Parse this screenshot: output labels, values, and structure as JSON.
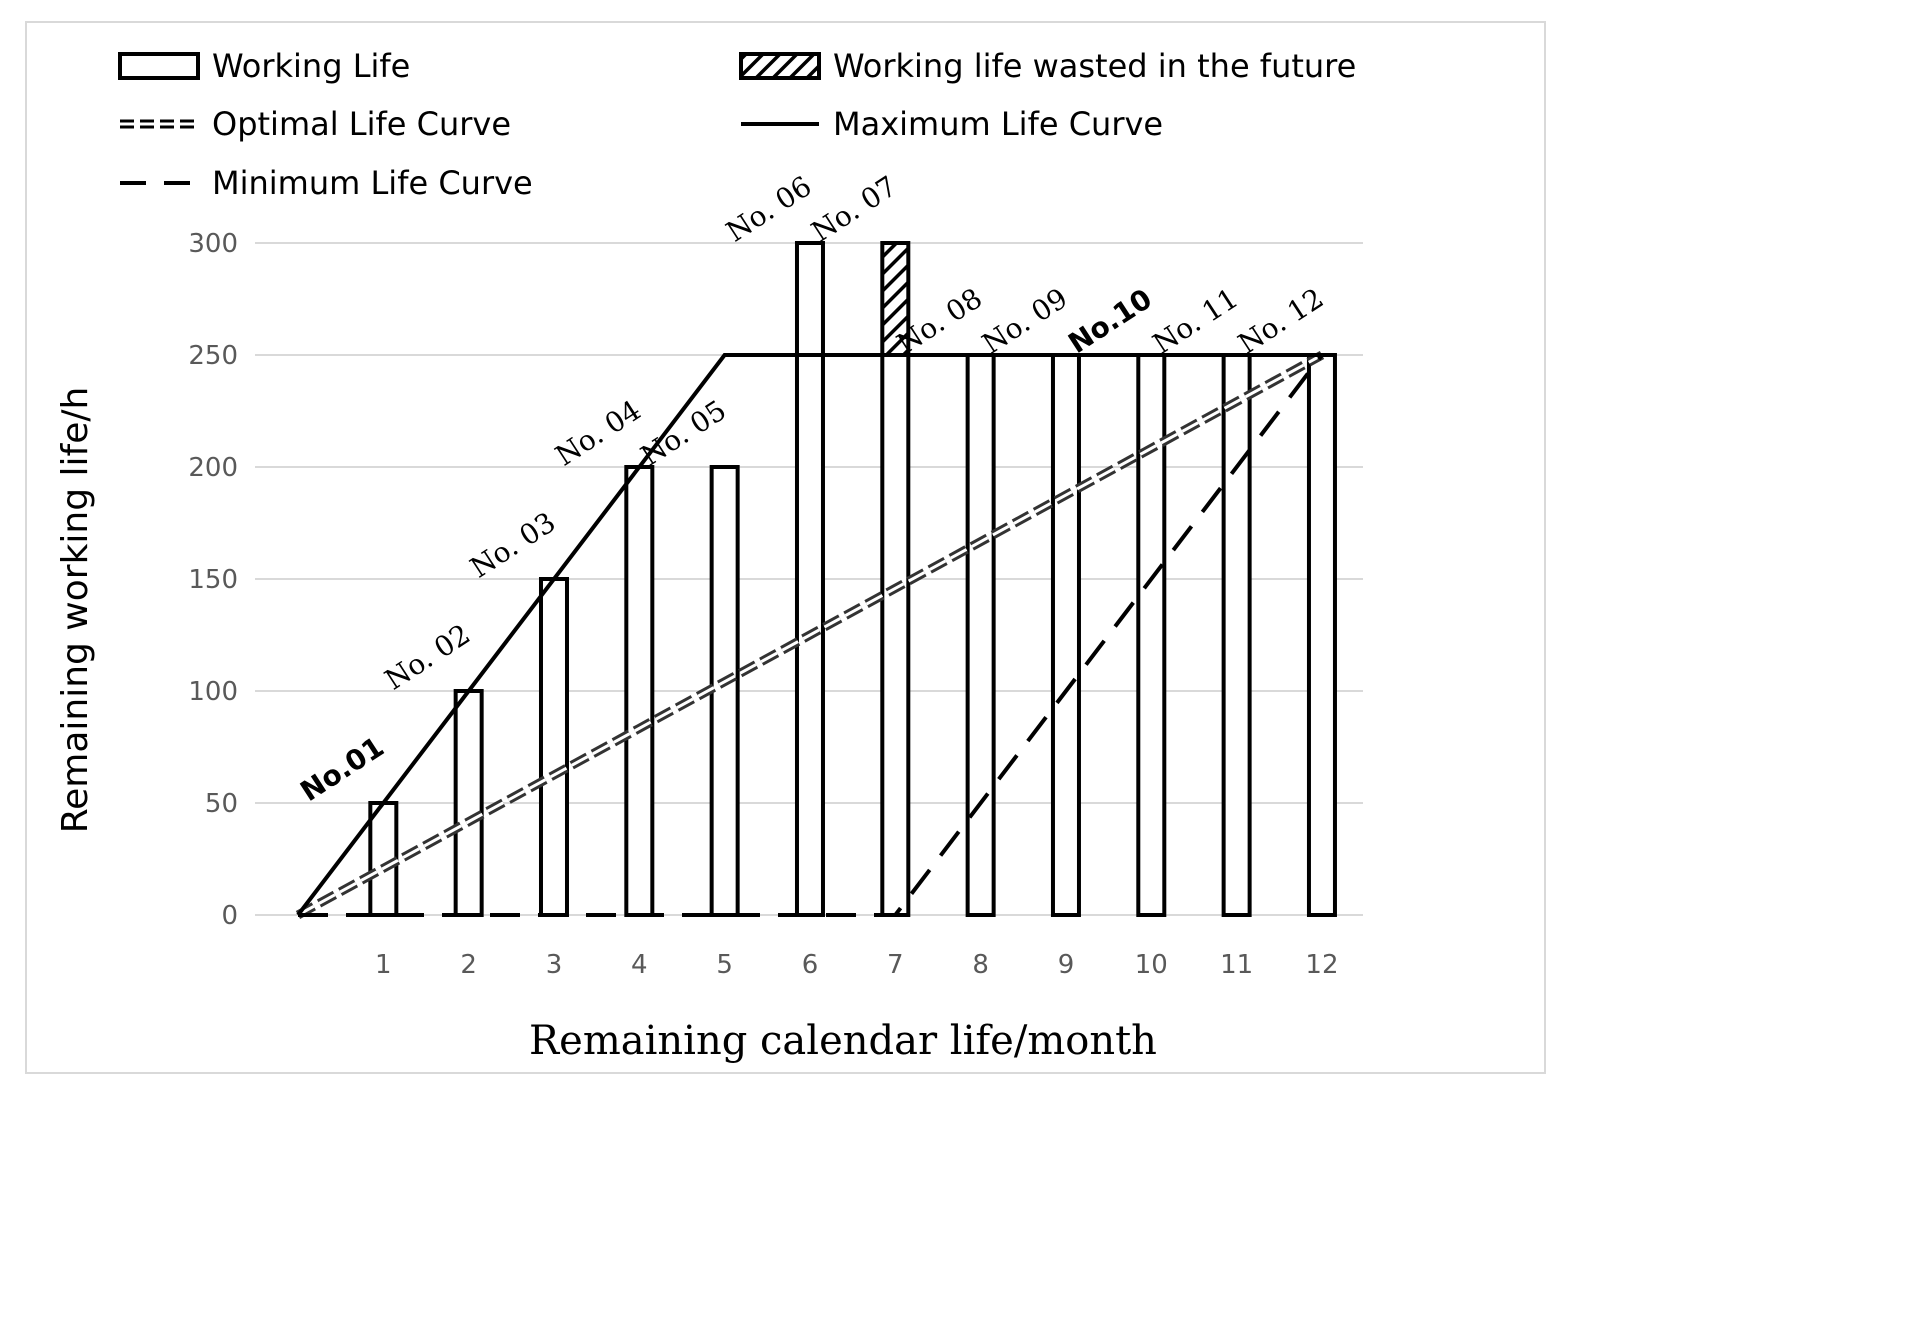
{
  "chart_data": {
    "type": "bar",
    "title": "",
    "xlabel": "Remaining calendar life/month",
    "ylabel": "Remaining working life/h",
    "ylim": [
      0,
      300
    ],
    "yticks": [
      "0",
      "50",
      "100",
      "150",
      "200",
      "250",
      "300"
    ],
    "grid": true,
    "legend_position": "top",
    "categories": [
      "1",
      "2",
      "3",
      "4",
      "5",
      "6",
      "7",
      "8",
      "9",
      "10",
      "11",
      "12"
    ],
    "bar_labels": [
      "No.01",
      "No. 02",
      "No. 03",
      "No. 04",
      "No. 05",
      "No. 06",
      "No. 07",
      "No. 08",
      "No. 09",
      "No.10",
      "No. 11",
      "No. 12"
    ],
    "series": [
      {
        "name": "Working Life",
        "values": [
          50,
          100,
          150,
          200,
          200,
          300,
          250,
          250,
          250,
          250,
          250,
          250
        ]
      },
      {
        "name": "Working life wasted in the future",
        "values": [
          0,
          0,
          0,
          0,
          0,
          0,
          50,
          0,
          0,
          0,
          0,
          0
        ]
      }
    ],
    "lines": [
      {
        "name": "Optimal Life Curve",
        "style": "double-dashed",
        "x": [
          0,
          12
        ],
        "y": [
          0,
          250
        ]
      },
      {
        "name": "Maximum Life Curve",
        "style": "solid",
        "x": [
          0,
          5,
          12
        ],
        "y": [
          0,
          250,
          250
        ]
      },
      {
        "name": "Minimum Life Curve",
        "style": "dashed",
        "x": [
          0,
          7,
          12
        ],
        "y": [
          0,
          0,
          250
        ]
      }
    ]
  },
  "legend": [
    {
      "key": "working-life",
      "label": "Working Life"
    },
    {
      "key": "wasted-life",
      "label": "Working life wasted in the future"
    },
    {
      "key": "optimal-curve",
      "label": "Optimal Life Curve"
    },
    {
      "key": "maximum-curve",
      "label": "Maximum Life Curve"
    },
    {
      "key": "minimum-curve",
      "label": "Minimum Life Curve"
    }
  ]
}
